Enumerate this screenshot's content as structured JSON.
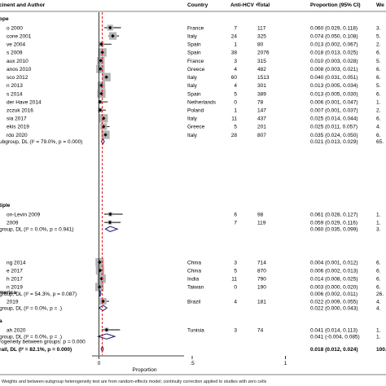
{
  "chart_data": {
    "type": "forest",
    "headers": {
      "study": "cinent and Author",
      "country": "Country",
      "events": "Anti-HCV +",
      "total": "Total",
      "estimate": "Proportion (95% CI)",
      "weight": "We"
    },
    "xaxis": {
      "label": "Proportion",
      "ticks": [
        0,
        0.5,
        1
      ],
      "tick_labels": [
        "0",
        ".5",
        "1"
      ],
      "range": [
        -0.05,
        1.08
      ],
      "reference_line": 0.018
    },
    "footnote": "Weights and between-subgroup heterogeneity test are from random-effects model; continuity correction applied to studies with zero cells",
    "groups": [
      {
        "name": "ope",
        "studies": [
          {
            "label": "o 2000",
            "country": "France",
            "events": "7",
            "total": "117",
            "est": 0.06,
            "lo": 0.029,
            "hi": 0.118,
            "ci_text": "0.060 (0.029, 0.118)",
            "weight_text": "3."
          },
          {
            "label": "cone 2001",
            "country": "Italy",
            "events": "24",
            "total": "325",
            "est": 0.074,
            "lo": 0.05,
            "hi": 0.108,
            "ci_text": "0.074 (0.050, 0.108)",
            "weight_text": "5."
          },
          {
            "label": "ve 2004",
            "country": "Spain",
            "events": "1",
            "total": "80",
            "est": 0.013,
            "lo": 0.002,
            "hi": 0.067,
            "ci_text": "0.013 (0.002, 0.067)",
            "weight_text": "2."
          },
          {
            "label": "s 2009",
            "country": "Spain",
            "events": "38",
            "total": "2076",
            "est": 0.018,
            "lo": 0.013,
            "hi": 0.025,
            "ci_text": "0.018 (0.013, 0.025)",
            "weight_text": "6."
          },
          {
            "label": "aux 2010",
            "country": "France",
            "events": "3",
            "total": "315",
            "est": 0.01,
            "lo": 0.003,
            "hi": 0.028,
            "ci_text": "0.010 (0.003, 0.028)",
            "weight_text": "5."
          },
          {
            "label": "anos 2010",
            "country": "Greece",
            "events": "4",
            "total": "482",
            "est": 0.008,
            "lo": 0.003,
            "hi": 0.021,
            "ci_text": "0.008 (0.003, 0.021)",
            "weight_text": "6."
          },
          {
            "label": "sco 2012",
            "country": "Italy",
            "events": "60",
            "total": "1513",
            "est": 0.04,
            "lo": 0.031,
            "hi": 0.051,
            "ci_text": "0.040 (0.031, 0.051)",
            "weight_text": "6."
          },
          {
            "label": "n 2013",
            "country": "Italy",
            "events": "4",
            "total": "301",
            "est": 0.013,
            "lo": 0.005,
            "hi": 0.034,
            "ci_text": "0.013 (0.005, 0.034)",
            "weight_text": "5."
          },
          {
            "label": "s 2014",
            "country": "Spain",
            "events": "5",
            "total": "389",
            "est": 0.013,
            "lo": 0.005,
            "hi": 0.03,
            "ci_text": "0.013 (0.005, 0.030)",
            "weight_text": "6."
          },
          {
            "label": "der Have 2014",
            "country": "Netherlands",
            "events": "0",
            "total": "78",
            "est": 0.006,
            "lo": 0.001,
            "hi": 0.047,
            "ci_text": "0.006 (0.001, 0.047)",
            "weight_text": "1."
          },
          {
            "label": "zczuk 2016",
            "country": "Poland",
            "events": "1",
            "total": "147",
            "est": 0.007,
            "lo": 0.001,
            "hi": 0.037,
            "ci_text": "0.007 (0.001, 0.037)",
            "weight_text": "2."
          },
          {
            "label": "sia 2017",
            "country": "Italy",
            "events": "11",
            "total": "437",
            "est": 0.025,
            "lo": 0.014,
            "hi": 0.044,
            "ci_text": "0.025 (0.014, 0.044)",
            "weight_text": "6."
          },
          {
            "label": "ekis 2019",
            "country": "Greece",
            "events": "5",
            "total": "201",
            "est": 0.025,
            "lo": 0.011,
            "hi": 0.057,
            "ci_text": "0.025 (0.011, 0.057)",
            "weight_text": "4."
          },
          {
            "label": "rdo 2020",
            "country": "Italy",
            "events": "28",
            "total": "807",
            "est": 0.035,
            "lo": 0.024,
            "hi": 0.05,
            "ci_text": "0.035 (0.024, 0.050)",
            "weight_text": "6."
          }
        ],
        "subtotal": {
          "label": "ubgroup, DL (I² = 79.0%, p = 0.000)",
          "est": 0.021,
          "lo": 0.013,
          "hi": 0.029,
          "ci_text": "0.021 (0.013, 0.029)",
          "weight_text": "65."
        }
      },
      {
        "name": "tiple",
        "studies": [
          {
            "label": "on-Levin 2009",
            "country": "",
            "events": "6",
            "total": "98",
            "est": 0.061,
            "lo": 0.028,
            "hi": 0.127,
            "ci_text": "0.061 (0.028, 0.127)",
            "weight_text": "1."
          },
          {
            "label": "2009",
            "country": "",
            "events": "7",
            "total": "119",
            "est": 0.059,
            "lo": 0.029,
            "hi": 0.116,
            "ci_text": "0.059 (0.029, 0.116)",
            "weight_text": "1."
          }
        ],
        "subtotal": {
          "label": "group, DL (I² = 0.0%, p = 0.941)",
          "est": 0.06,
          "lo": 0.035,
          "hi": 0.099,
          "ci_text": "0.060 (0.035, 0.099)",
          "weight_text": "3."
        }
      },
      {
        "name": "",
        "studies": [
          {
            "label": "ng 2014",
            "country": "China",
            "events": "3",
            "total": "714",
            "est": 0.004,
            "lo": 0.001,
            "hi": 0.012,
            "ci_text": "0.004 (0.001, 0.012)",
            "weight_text": "6."
          },
          {
            "label": "e 2017",
            "country": "China",
            "events": "5",
            "total": "870",
            "est": 0.006,
            "lo": 0.002,
            "hi": 0.013,
            "ci_text": "0.006 (0.002, 0.013)",
            "weight_text": "6."
          },
          {
            "label": "h 2017",
            "country": "India",
            "events": "11",
            "total": "790",
            "est": 0.014,
            "lo": 0.008,
            "hi": 0.025,
            "ci_text": "0.014 (0.008, 0.025)",
            "weight_text": "6."
          },
          {
            "label": "n 2019",
            "country": "Taiwan",
            "events": "0",
            "total": "190",
            "est": 0.003,
            "lo": 0.0,
            "hi": 0.02,
            "ci_text": "0.003 (0.000, 0.020)",
            "weight_text": "6."
          }
        ],
        "subtotal": {
          "label": "group, DL (I² = 54.3%, p = 0.087)",
          "est": 0.006,
          "lo": 0.002,
          "hi": 0.011,
          "ci_text": "0.006 (0.002, 0.011)",
          "weight_text": "26."
        }
      },
      {
        "name": "merica",
        "studies": [
          {
            "label": "2019",
            "country": "Brazil",
            "events": "4",
            "total": "181",
            "est": 0.022,
            "lo": 0.009,
            "hi": 0.055,
            "ci_text": "0.022 (0.009, 0.055)",
            "weight_text": "4."
          }
        ],
        "subtotal": {
          "label": "group, DL (I² = 0.0%, p = .)",
          "est": 0.022,
          "lo": 0.0,
          "hi": 0.043,
          "ci_text": "0.022 (0.000, 0.043)",
          "weight_text": "4."
        }
      },
      {
        "name": "a",
        "studies": [
          {
            "label": "ah 2020",
            "country": "Tunisia",
            "events": "3",
            "total": "74",
            "est": 0.041,
            "lo": 0.014,
            "hi": 0.113,
            "ci_text": "0.041 (0.014, 0.113)",
            "weight_text": "1."
          }
        ],
        "subtotal": {
          "label": "group, DL (I² = 0.0%, p = .)",
          "est": 0.041,
          "lo": -0.004,
          "hi": 0.085,
          "ci_text": "0.041 (-0.004, 0.085)",
          "weight_text": "1."
        }
      }
    ],
    "heterogeneity": "rogeneity between groups: p = 0.000",
    "overall": {
      "label": "rall, DL (I² = 82.1%, p = 0.000)",
      "est": 0.018,
      "lo": 0.012,
      "hi": 0.024,
      "ci_text": "0.018 (0.012, 0.024)",
      "weight_text": "100."
    }
  }
}
